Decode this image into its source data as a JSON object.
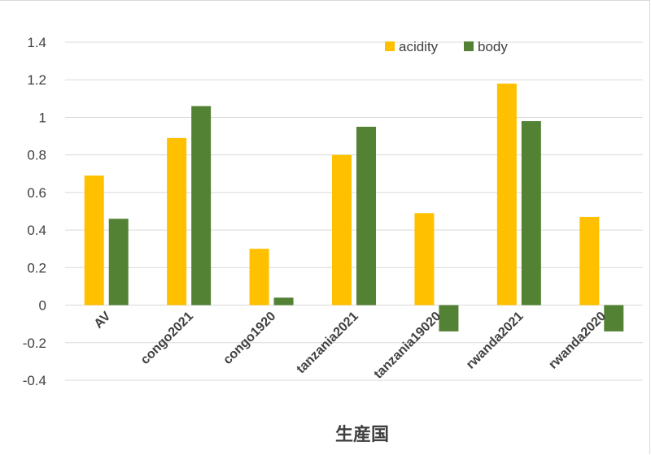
{
  "chart_data": {
    "type": "bar",
    "categories": [
      "AV",
      "congo2021",
      "congo1920",
      "tanzania2021",
      "tanzania19020",
      "rwanda2021",
      "rwanda2020"
    ],
    "series": [
      {
        "name": "acidity",
        "color": "#FFC000",
        "values": [
          0.69,
          0.89,
          0.3,
          0.8,
          0.49,
          1.18,
          0.47
        ]
      },
      {
        "name": "body",
        "color": "#548235",
        "values": [
          0.46,
          1.06,
          0.04,
          0.95,
          -0.14,
          0.98,
          -0.14
        ]
      }
    ],
    "title": "",
    "xlabel": "生産国",
    "ylabel": "",
    "ylim": [
      -0.4,
      1.4
    ],
    "yticks": [
      "-0.4",
      "-0.2",
      "0",
      "0.2",
      "0.4",
      "0.6",
      "0.8",
      "1",
      "1.2",
      "1.4"
    ],
    "grid": true,
    "gridline_color": "#d9d9d9",
    "legend_position": "top-right"
  }
}
